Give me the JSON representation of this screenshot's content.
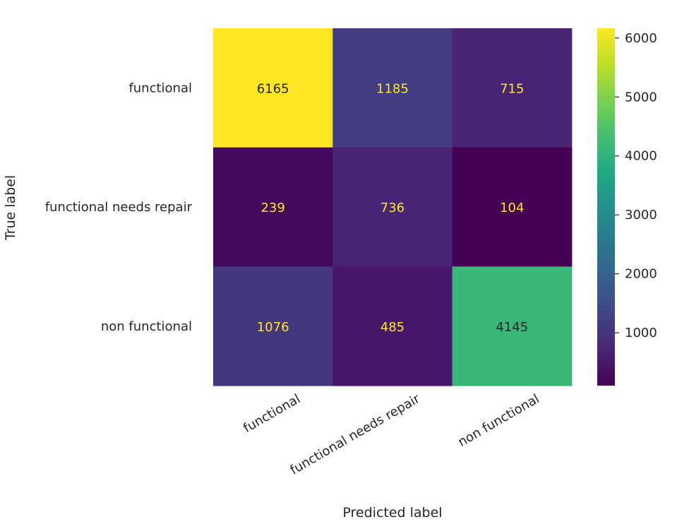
{
  "chart_data": {
    "type": "heatmap",
    "title": "",
    "xlabel": "Predicted label",
    "ylabel": "True label",
    "x_categories": [
      "functional",
      "functional needs repair",
      "non functional"
    ],
    "y_categories": [
      "functional",
      "functional needs repair",
      "non functional"
    ],
    "values": [
      [
        6165,
        1185,
        715
      ],
      [
        239,
        736,
        104
      ],
      [
        1076,
        485,
        4145
      ]
    ],
    "colormap": "viridis",
    "colorbar": {
      "range": [
        104,
        6165
      ],
      "ticks": [
        1000,
        2000,
        3000,
        4000,
        5000,
        6000
      ]
    },
    "grid": false,
    "colors": {
      "text_on_dark": "#FDE725",
      "text_on_light": "#262626"
    }
  }
}
